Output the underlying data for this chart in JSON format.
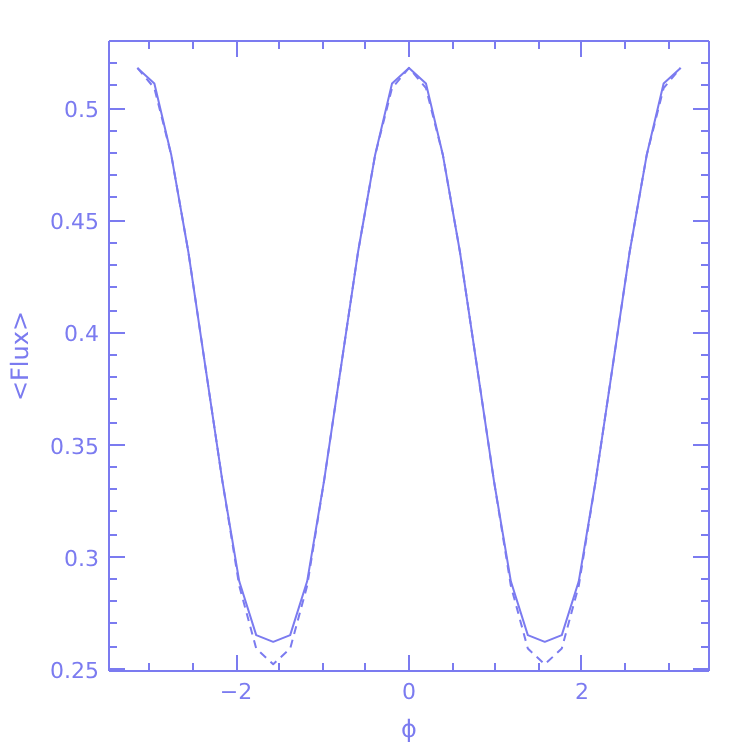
{
  "chart_data": {
    "type": "line",
    "xlabel": "ϕ",
    "ylabel": "<Flux>",
    "x": [
      -3.1416,
      -2.9452,
      -2.7489,
      -2.5525,
      -2.3562,
      -2.1598,
      -1.9635,
      -1.7671,
      -1.5708,
      -1.3744,
      -1.1781,
      -0.9817,
      -0.7854,
      -0.589,
      -0.3927,
      -0.1963,
      0,
      0.1963,
      0.3927,
      0.589,
      0.7854,
      0.9817,
      1.1781,
      1.3744,
      1.5708,
      1.7671,
      1.9635,
      2.1598,
      2.3562,
      2.5525,
      2.7489,
      2.9452,
      3.1416
    ],
    "series": [
      {
        "color": "#7b7bf0",
        "line_style": "solid",
        "values": [
          0.518,
          0.511,
          0.479,
          0.436,
          0.385,
          0.334,
          0.289,
          0.265,
          0.262,
          0.265,
          0.289,
          0.334,
          0.385,
          0.436,
          0.479,
          0.511,
          0.518,
          0.511,
          0.479,
          0.436,
          0.385,
          0.334,
          0.289,
          0.265,
          0.262,
          0.265,
          0.289,
          0.334,
          0.385,
          0.436,
          0.479,
          0.511,
          0.518
        ]
      },
      {
        "color": "#7b7bf0",
        "line_style": "dashed",
        "values": [
          0.518,
          0.509,
          0.479,
          0.436,
          0.385,
          0.334,
          0.287,
          0.259,
          0.252,
          0.259,
          0.287,
          0.334,
          0.385,
          0.436,
          0.479,
          0.509,
          0.518,
          0.509,
          0.479,
          0.436,
          0.385,
          0.334,
          0.287,
          0.259,
          0.252,
          0.259,
          0.287,
          0.334,
          0.385,
          0.436,
          0.479,
          0.509,
          0.518
        ]
      }
    ],
    "xlim": [
      -3.47,
      3.47
    ],
    "ylim": [
      0.249,
      0.53
    ],
    "xticks": [
      {
        "value": -2,
        "label": "−2"
      },
      0,
      2
    ],
    "yticks": [
      0.25,
      0.3,
      0.35,
      0.4,
      0.45,
      0.5
    ],
    "grid": false
  }
}
